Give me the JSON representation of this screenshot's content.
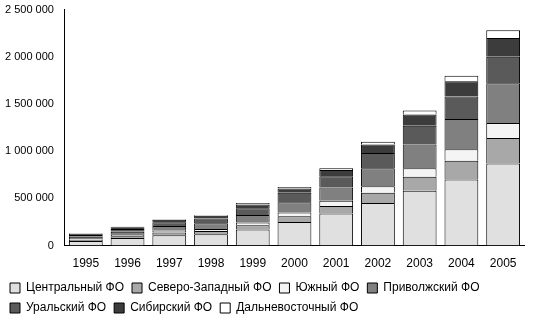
{
  "chart_data": {
    "type": "bar",
    "stacked": true,
    "grid": false,
    "legend": "bottom",
    "categories": [
      "1995",
      "1996",
      "1997",
      "1998",
      "1999",
      "2000",
      "2001",
      "2002",
      "2003",
      "2004",
      "2005"
    ],
    "ylim": [
      0,
      2500000
    ],
    "yticks": [
      0,
      {
        "value": 500000,
        "label": "500 000"
      },
      {
        "value": 1000000,
        "label": "1 000 000"
      },
      {
        "value": 1500000,
        "label": "1 500 000"
      },
      {
        "value": 2000000,
        "label": "2 000 000"
      },
      {
        "value": 2500000,
        "label": "2 500 000"
      }
    ],
    "series": [
      {
        "name": "Центральный ФО",
        "color": "#e0e0e0",
        "values": [
          50000,
          80000,
          110000,
          120000,
          170000,
          250000,
          340000,
          450000,
          580000,
          700000,
          870000
        ]
      },
      {
        "name": "Северо-Западный ФО",
        "color": "#a8a8a8",
        "values": [
          10000,
          20000,
          30000,
          35000,
          45000,
          60000,
          80000,
          110000,
          150000,
          200000,
          270000
        ]
      },
      {
        "name": "Южный ФО",
        "color": "#f4f4f4",
        "values": [
          8000,
          12000,
          18000,
          22000,
          30000,
          40000,
          55000,
          70000,
          90000,
          120000,
          160000
        ]
      },
      {
        "name": "Приволжский ФО",
        "color": "#808080",
        "values": [
          25000,
          35000,
          50000,
          60000,
          80000,
          110000,
          140000,
          190000,
          250000,
          320000,
          420000
        ]
      },
      {
        "name": "Уральский ФО",
        "color": "#5a5a5a",
        "values": [
          20000,
          30000,
          40000,
          50000,
          70000,
          100000,
          120000,
          160000,
          200000,
          240000,
          280000
        ]
      },
      {
        "name": "Сибирский ФО",
        "color": "#3c3c3c",
        "values": [
          12000,
          18000,
          25000,
          30000,
          40000,
          45000,
          65000,
          90000,
          120000,
          160000,
          200000
        ]
      },
      {
        "name": "Дальневосточный ФО",
        "color": "#ffffff",
        "values": [
          5000,
          5000,
          7000,
          8000,
          15000,
          15000,
          20000,
          30000,
          40000,
          60000,
          80000
        ]
      }
    ]
  }
}
